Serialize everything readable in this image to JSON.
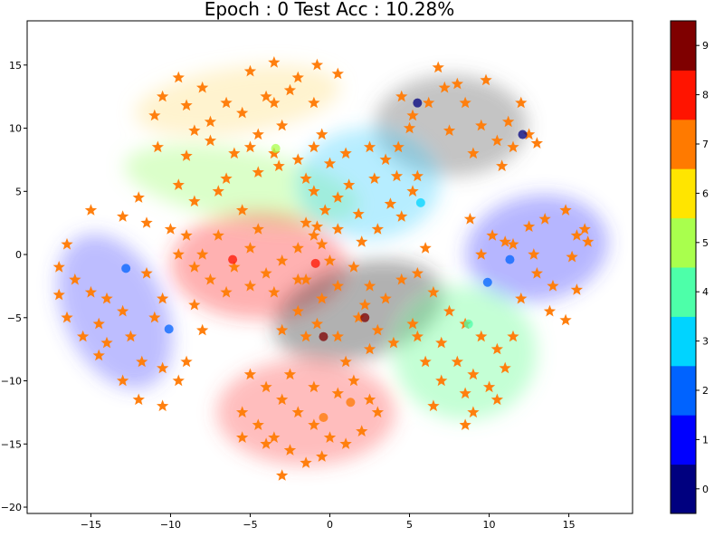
{
  "chart_data": {
    "type": "scatter",
    "title": "Epoch : 0  Test Acc : 10.28%",
    "xlabel": "",
    "ylabel": "",
    "xlim": [
      -19,
      19
    ],
    "ylim": [
      -20.5,
      18.5
    ],
    "xticks": [
      -15,
      -10,
      -5,
      0,
      5,
      10,
      15
    ],
    "xtick_labels": [
      "−15",
      "−10",
      "−5",
      "0",
      "5",
      "10",
      "15"
    ],
    "yticks": [
      -20,
      -15,
      -10,
      -5,
      0,
      5,
      10,
      15
    ],
    "ytick_labels": [
      "−20",
      "−15",
      "−10",
      "−5",
      "0",
      "5",
      "10",
      "15"
    ],
    "colorbar": {
      "ticks": [
        0,
        1,
        2,
        3,
        4,
        5,
        6,
        7,
        8,
        9
      ],
      "tick_labels": [
        "0",
        "1",
        "2",
        "3",
        "4",
        "5",
        "6",
        "7",
        "8",
        "9"
      ],
      "colors": [
        "#00007f",
        "#0000ff",
        "#0063ff",
        "#00d4ff",
        "#4dffa9",
        "#a9ff4d",
        "#ffe500",
        "#ff7a00",
        "#ff1400",
        "#7f0000"
      ]
    },
    "clusters": [
      {
        "label": "6",
        "color": "#ffe080",
        "cx": -5.8,
        "cy": 12.2,
        "rx": 6.5,
        "ry": 2.6,
        "rot": -8
      },
      {
        "label": "9",
        "color": "#606060",
        "cx": 7.6,
        "cy": 10.2,
        "rx": 4.8,
        "ry": 4.0,
        "rot": 0
      },
      {
        "label": "5",
        "color": "#a0ff70",
        "cx": -5.5,
        "cy": 5.5,
        "rx": 7.5,
        "ry": 2.8,
        "rot": 10
      },
      {
        "label": "3",
        "color": "#40d0ff",
        "cx": 2.4,
        "cy": 5.6,
        "rx": 4.5,
        "ry": 4.4,
        "rot": 0
      },
      {
        "label": "1",
        "color": "#4040ff",
        "cx": 13.0,
        "cy": 0.5,
        "rx": 4.5,
        "ry": 4.2,
        "rot": -10
      },
      {
        "label": "8",
        "color": "#ff3030",
        "cx": -4.5,
        "cy": -0.8,
        "rx": 5.5,
        "ry": 4.3,
        "rot": 0
      },
      {
        "label": "1",
        "color": "#5050ff",
        "cx": -13.5,
        "cy": -4.5,
        "rx": 3.2,
        "ry": 6.5,
        "rot": -25
      },
      {
        "label": "9",
        "color": "#303030",
        "cx": 1.8,
        "cy": -4.5,
        "rx": 5.5,
        "ry": 3.8,
        "rot": -15
      },
      {
        "label": "4",
        "color": "#60ff90",
        "cx": 8.5,
        "cy": -7.8,
        "rx": 4.5,
        "ry": 5.3,
        "rot": 0
      },
      {
        "label": "8",
        "color": "#ff5050",
        "cx": -1.5,
        "cy": -12.5,
        "rx": 5.6,
        "ry": 4.2,
        "rot": 0
      }
    ],
    "star_color": "#ff7f0e",
    "stars": [
      [
        -10.5,
        12.5
      ],
      [
        -9.5,
        14.0
      ],
      [
        -8.0,
        13.2
      ],
      [
        -6.5,
        12.0
      ],
      [
        -5.0,
        14.5
      ],
      [
        -3.5,
        15.2
      ],
      [
        -2.0,
        14.0
      ],
      [
        -0.8,
        15.0
      ],
      [
        0.5,
        14.3
      ],
      [
        -11.0,
        11.0
      ],
      [
        -9.0,
        11.8
      ],
      [
        -7.5,
        10.5
      ],
      [
        -5.5,
        11.2
      ],
      [
        -4.0,
        12.5
      ],
      [
        -2.5,
        13.0
      ],
      [
        -1.0,
        12.0
      ],
      [
        -10.8,
        8.5
      ],
      [
        -9.0,
        7.8
      ],
      [
        -7.5,
        9.0
      ],
      [
        -6.0,
        8.0
      ],
      [
        -4.5,
        9.5
      ],
      [
        -3.0,
        10.2
      ],
      [
        -8.5,
        9.8
      ],
      [
        -3.5,
        12.0
      ],
      [
        4.5,
        12.5
      ],
      [
        5.2,
        11.0
      ],
      [
        6.8,
        14.8
      ],
      [
        7.2,
        13.2
      ],
      [
        8.5,
        12.0
      ],
      [
        9.5,
        10.2
      ],
      [
        10.5,
        9.0
      ],
      [
        11.5,
        8.5
      ],
      [
        12.5,
        9.5
      ],
      [
        13.0,
        8.8
      ],
      [
        10.8,
        7.0
      ],
      [
        9.0,
        8.0
      ],
      [
        7.5,
        9.8
      ],
      [
        6.2,
        12.0
      ],
      [
        5.0,
        10.0
      ],
      [
        4.3,
        8.5
      ],
      [
        8.0,
        13.5
      ],
      [
        11.2,
        10.5
      ],
      [
        12.0,
        12.0
      ],
      [
        9.8,
        13.8
      ],
      [
        -15.0,
        3.5
      ],
      [
        -13.0,
        3.0
      ],
      [
        -11.5,
        2.5
      ],
      [
        -10.0,
        2.0
      ],
      [
        -8.5,
        4.2
      ],
      [
        -7.0,
        5.0
      ],
      [
        -5.5,
        3.5
      ],
      [
        -4.5,
        6.5
      ],
      [
        -3.2,
        7.0
      ],
      [
        -2.0,
        7.5
      ],
      [
        -1.0,
        8.5
      ],
      [
        -0.5,
        9.5
      ],
      [
        -12.0,
        4.5
      ],
      [
        -9.5,
        5.5
      ],
      [
        -6.5,
        6.0
      ],
      [
        -3.5,
        8.0
      ],
      [
        -5.0,
        8.5
      ],
      [
        -1.5,
        6.0
      ],
      [
        0.0,
        7.2
      ],
      [
        1.0,
        8.0
      ],
      [
        2.5,
        8.5
      ],
      [
        3.5,
        7.5
      ],
      [
        4.2,
        6.2
      ],
      [
        5.2,
        5.0
      ],
      [
        4.5,
        3.0
      ],
      [
        3.0,
        2.0
      ],
      [
        1.8,
        3.2
      ],
      [
        0.5,
        4.5
      ],
      [
        -0.3,
        3.5
      ],
      [
        1.2,
        5.5
      ],
      [
        2.8,
        6.0
      ],
      [
        -1.0,
        5.0
      ],
      [
        0.5,
        2.0
      ],
      [
        2.0,
        1.0
      ],
      [
        5.5,
        6.2
      ],
      [
        3.8,
        4.0
      ],
      [
        -0.8,
        2.2
      ],
      [
        8.8,
        2.8
      ],
      [
        10.2,
        1.5
      ],
      [
        11.5,
        0.8
      ],
      [
        12.5,
        2.2
      ],
      [
        13.5,
        2.8
      ],
      [
        14.8,
        3.5
      ],
      [
        15.5,
        1.5
      ],
      [
        16.2,
        1.0
      ],
      [
        15.2,
        -0.2
      ],
      [
        13.0,
        -1.5
      ],
      [
        14.0,
        -2.5
      ],
      [
        12.0,
        -3.5
      ],
      [
        13.8,
        -4.5
      ],
      [
        15.5,
        -2.8
      ],
      [
        11.0,
        1.0
      ],
      [
        9.5,
        0.0
      ],
      [
        12.8,
        0.0
      ],
      [
        16.0,
        2.0
      ],
      [
        14.8,
        -5.2
      ],
      [
        -9.0,
        1.5
      ],
      [
        -8.0,
        0.0
      ],
      [
        -7.0,
        1.5
      ],
      [
        -6.0,
        -1.0
      ],
      [
        -5.0,
        0.5
      ],
      [
        -4.0,
        -1.5
      ],
      [
        -3.0,
        -0.5
      ],
      [
        -2.0,
        0.5
      ],
      [
        -1.0,
        1.5
      ],
      [
        0.0,
        -0.5
      ],
      [
        -7.5,
        -2.0
      ],
      [
        -6.5,
        -3.0
      ],
      [
        -5.0,
        -2.5
      ],
      [
        -3.5,
        -3.0
      ],
      [
        -2.0,
        -2.0
      ],
      [
        -0.5,
        0.8
      ],
      [
        -8.5,
        -1.0
      ],
      [
        -9.5,
        0.0
      ],
      [
        -4.5,
        2.0
      ],
      [
        -1.5,
        2.5
      ],
      [
        -16.5,
        0.8
      ],
      [
        -17.0,
        -1.0
      ],
      [
        -16.0,
        -2.0
      ],
      [
        -15.0,
        -3.0
      ],
      [
        -14.0,
        -3.5
      ],
      [
        -13.0,
        -4.5
      ],
      [
        -14.5,
        -5.5
      ],
      [
        -15.5,
        -6.5
      ],
      [
        -14.0,
        -7.0
      ],
      [
        -12.5,
        -6.5
      ],
      [
        -11.8,
        -8.5
      ],
      [
        -10.5,
        -9.0
      ],
      [
        -9.5,
        -10.0
      ],
      [
        -12.0,
        -11.5
      ],
      [
        -10.5,
        -12.0
      ],
      [
        -9.0,
        -8.5
      ],
      [
        -8.0,
        -6.0
      ],
      [
        -16.5,
        -5.0
      ],
      [
        -17.0,
        -3.2
      ],
      [
        -11.5,
        -1.5
      ],
      [
        -10.5,
        -3.5
      ],
      [
        -11.0,
        -5.0
      ],
      [
        -8.5,
        -4.0
      ],
      [
        -13.0,
        -10.0
      ],
      [
        -14.5,
        -8.0
      ],
      [
        -1.5,
        -2.0
      ],
      [
        -0.5,
        -3.5
      ],
      [
        0.5,
        -2.5
      ],
      [
        1.5,
        -1.0
      ],
      [
        2.5,
        -2.5
      ],
      [
        3.5,
        -3.5
      ],
      [
        4.5,
        -2.0
      ],
      [
        5.5,
        -1.5
      ],
      [
        6.0,
        0.5
      ],
      [
        -2.0,
        -4.5
      ],
      [
        -0.8,
        -5.5
      ],
      [
        0.5,
        -6.5
      ],
      [
        1.8,
        -5.0
      ],
      [
        3.0,
        -6.0
      ],
      [
        4.0,
        -7.0
      ],
      [
        5.2,
        -5.5
      ],
      [
        2.5,
        -7.5
      ],
      [
        1.0,
        -8.5
      ],
      [
        -1.5,
        -6.5
      ],
      [
        -3.0,
        -6.0
      ],
      [
        2.2,
        -4.0
      ],
      [
        6.5,
        -3.0
      ],
      [
        7.5,
        -4.5
      ],
      [
        8.5,
        -5.5
      ],
      [
        9.5,
        -6.5
      ],
      [
        10.5,
        -7.5
      ],
      [
        11.0,
        -9.0
      ],
      [
        10.0,
        -10.5
      ],
      [
        8.5,
        -11.0
      ],
      [
        7.0,
        -10.0
      ],
      [
        6.0,
        -8.5
      ],
      [
        5.5,
        -6.5
      ],
      [
        7.0,
        -7.0
      ],
      [
        8.0,
        -8.5
      ],
      [
        9.0,
        -12.5
      ],
      [
        8.5,
        -13.5
      ],
      [
        11.5,
        -6.5
      ],
      [
        9.0,
        -9.5
      ],
      [
        10.5,
        -11.5
      ],
      [
        6.5,
        -12.0
      ],
      [
        -5.0,
        -9.5
      ],
      [
        -4.0,
        -10.5
      ],
      [
        -3.0,
        -11.5
      ],
      [
        -2.0,
        -12.5
      ],
      [
        -1.0,
        -13.5
      ],
      [
        0.0,
        -14.5
      ],
      [
        1.0,
        -15.0
      ],
      [
        2.0,
        -14.0
      ],
      [
        3.0,
        -12.5
      ],
      [
        -5.5,
        -12.5
      ],
      [
        -4.5,
        -13.5
      ],
      [
        -3.5,
        -14.5
      ],
      [
        -2.5,
        -15.5
      ],
      [
        -1.5,
        -16.5
      ],
      [
        -4.0,
        -15.0
      ],
      [
        -5.5,
        -14.5
      ],
      [
        -3.0,
        -17.5
      ],
      [
        0.5,
        -11.0
      ],
      [
        1.5,
        -10.0
      ],
      [
        -1.0,
        -10.5
      ],
      [
        -2.5,
        -9.5
      ],
      [
        2.5,
        -11.5
      ],
      [
        -0.5,
        -16.0
      ]
    ],
    "dots": [
      {
        "label": "0",
        "x": 5.5,
        "y": 12.0
      },
      {
        "label": "0",
        "x": 12.1,
        "y": 9.5
      },
      {
        "label": "2",
        "x": -12.8,
        "y": -1.1
      },
      {
        "label": "2",
        "x": -10.1,
        "y": -5.9
      },
      {
        "label": "2",
        "x": 11.3,
        "y": -0.4
      },
      {
        "label": "2",
        "x": 9.9,
        "y": -2.2
      },
      {
        "label": "3",
        "x": 5.7,
        "y": 4.1
      },
      {
        "label": "4",
        "x": 8.7,
        "y": -5.5
      },
      {
        "label": "5",
        "x": -3.4,
        "y": 8.4
      },
      {
        "label": "7",
        "x": 1.3,
        "y": -11.7
      },
      {
        "label": "7",
        "x": -0.4,
        "y": -12.9
      },
      {
        "label": "8",
        "x": -6.1,
        "y": -0.4
      },
      {
        "label": "8",
        "x": -0.9,
        "y": -0.7
      },
      {
        "label": "9",
        "x": 2.2,
        "y": -5.0
      },
      {
        "label": "9",
        "x": -0.4,
        "y": -6.5
      }
    ]
  }
}
